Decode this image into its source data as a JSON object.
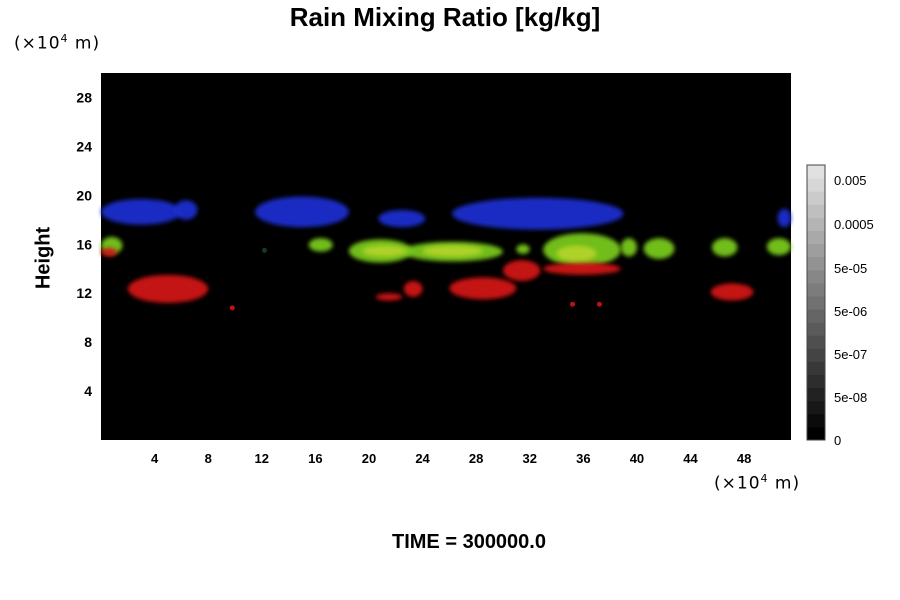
{
  "chart_data": {
    "type": "heatmap",
    "title": "Rain Mixing Ratio [kg/kg]",
    "ylabel": "Height",
    "xlabel": "",
    "y_unit": "(×10⁴ m)",
    "x_unit": "(×10⁴ m)",
    "x_ticks": [
      "4",
      "8",
      "12",
      "16",
      "20",
      "24",
      "28",
      "32",
      "36",
      "40",
      "44",
      "48"
    ],
    "y_ticks": [
      "4",
      "8",
      "12",
      "16",
      "20",
      "24",
      "28"
    ],
    "xlim": [
      0,
      51.5
    ],
    "ylim": [
      0,
      30
    ],
    "background_color": "#000000",
    "grid": false,
    "colorbar": {
      "labels": [
        "0.005",
        "0.0005",
        "5e-05",
        "5e-06",
        "5e-07",
        "5e-08",
        "0"
      ],
      "position": "right"
    },
    "features": [
      {
        "color": "#1428c8",
        "band": "blue",
        "x_range": [
          0,
          52
        ],
        "y_range": [
          17.5,
          20
        ]
      },
      {
        "color": "#7cd01c",
        "band": "green-yellow",
        "x_range": [
          0,
          52
        ],
        "y_range": [
          14.5,
          17
        ]
      },
      {
        "color": "#d41010",
        "band": "red",
        "x_range": [
          0,
          48
        ],
        "y_range": [
          11,
          15
        ]
      }
    ]
  },
  "footer": {
    "time_label": "TIME = 300000.0"
  }
}
